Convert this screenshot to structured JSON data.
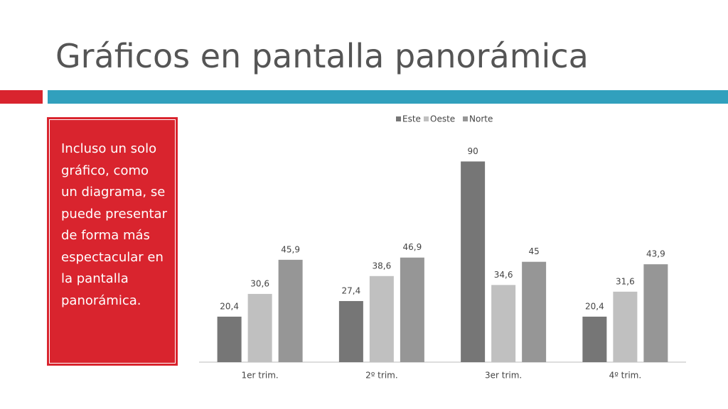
{
  "title": "Gráficos en pantalla panorámica",
  "sidebar_text": "Incluso un solo gráfico, como un diagrama, se puede presentar de forma más espectacular en la pantalla panorámica.",
  "chart_data": {
    "type": "bar",
    "categories": [
      "1er trim.",
      "2º trim.",
      "3er trim.",
      "4º trim."
    ],
    "series": [
      {
        "name": "Este",
        "color": "#767676",
        "values": [
          20.4,
          27.4,
          90,
          20.4
        ],
        "value_labels": [
          "20,4",
          "27,4",
          "90",
          "20,4"
        ]
      },
      {
        "name": "Oeste",
        "color": "#c0c0c0",
        "values": [
          30.6,
          38.6,
          34.6,
          31.6
        ],
        "value_labels": [
          "30,6",
          "38,6",
          "34,6",
          "31,6"
        ]
      },
      {
        "name": "Norte",
        "color": "#969696",
        "values": [
          45.9,
          46.9,
          45,
          43.9
        ],
        "value_labels": [
          "45,9",
          "46,9",
          "45",
          "43,9"
        ]
      }
    ],
    "ylim": [
      0,
      100
    ],
    "legend": "top"
  }
}
